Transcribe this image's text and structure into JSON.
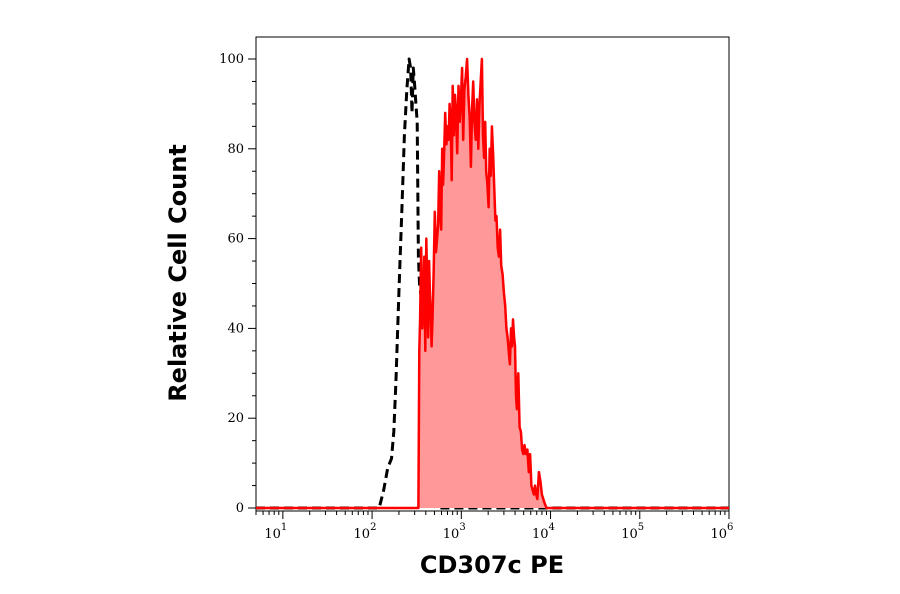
{
  "chart_data": {
    "type": "area",
    "title": "",
    "xlabel": "CD307c PE",
    "ylabel": "Relative Cell Count",
    "xscale": "log",
    "xlim": [
      5,
      1000000
    ],
    "ylim": [
      0,
      105
    ],
    "grid": false,
    "x_ticks": [
      {
        "base": "10",
        "exp": "1",
        "value": 10
      },
      {
        "base": "10",
        "exp": "2",
        "value": 100
      },
      {
        "base": "10",
        "exp": "3",
        "value": 1000
      },
      {
        "base": "10",
        "exp": "4",
        "value": 10000
      },
      {
        "base": "10",
        "exp": "5",
        "value": 100000
      },
      {
        "base": "10",
        "exp": "6",
        "value": 1000000
      }
    ],
    "y_ticks": [
      {
        "label": "0",
        "value": 0
      },
      {
        "label": "20",
        "value": 20
      },
      {
        "label": "40",
        "value": 40
      },
      {
        "label": "60",
        "value": 60
      },
      {
        "label": "80",
        "value": 80
      },
      {
        "label": "100",
        "value": 100
      }
    ],
    "series": [
      {
        "style": "dashed",
        "color": "#000000",
        "fill": "none",
        "x": [
          5,
          120,
          135,
          150,
          165,
          175,
          185,
          200,
          215,
          230,
          245,
          260,
          270,
          280,
          290,
          300,
          310,
          320,
          330,
          340,
          360,
          380,
          400,
          420,
          450,
          480,
          520,
          560,
          600,
          1000000
        ],
        "y": [
          0,
          0,
          4,
          9,
          11,
          17,
          28,
          48,
          66,
          83,
          93,
          100,
          98,
          88,
          98,
          94,
          90,
          86,
          56,
          50,
          46,
          23,
          18,
          5,
          2,
          1,
          0,
          0,
          0,
          0
        ]
      },
      {
        "style": "solid",
        "color": "#ff0000",
        "fill": "#ff9999",
        "x": [
          5,
          330,
          338,
          345,
          355,
          365,
          375,
          385,
          395,
          405,
          415,
          425,
          435,
          445,
          455,
          465,
          475,
          490,
          505,
          520,
          535,
          550,
          565,
          580,
          595,
          610,
          625,
          640,
          660,
          680,
          700,
          720,
          740,
          760,
          780,
          800,
          825,
          850,
          875,
          900,
          930,
          960,
          990,
          1020,
          1050,
          1080,
          1120,
          1160,
          1200,
          1240,
          1280,
          1320,
          1360,
          1400,
          1450,
          1500,
          1550,
          1600,
          1650,
          1700,
          1750,
          1800,
          1850,
          1900,
          1960,
          2020,
          2080,
          2140,
          2200,
          2270,
          2340,
          2410,
          2480,
          2560,
          2640,
          2720,
          2800,
          2900,
          3000,
          3100,
          3200,
          3300,
          3400,
          3500,
          3600,
          3700,
          3800,
          3900,
          4000,
          4100,
          4200,
          4350,
          4500,
          4650,
          4800,
          4950,
          5100,
          5300,
          5500,
          5700,
          5900,
          6100,
          6300,
          6500,
          6700,
          6900,
          7100,
          7400,
          7700,
          8000,
          8300,
          8600,
          9000,
          1000000
        ],
        "y": [
          0,
          0,
          35,
          42,
          58,
          40,
          45,
          56,
          35,
          60,
          50,
          38,
          55,
          48,
          43,
          36,
          42,
          53,
          66,
          57,
          60,
          63,
          75,
          66,
          62,
          80,
          72,
          78,
          88,
          81,
          85,
          82,
          90,
          86,
          73,
          94,
          83,
          92,
          88,
          79,
          94,
          86,
          91,
          98,
          82,
          93,
          96,
          100,
          92,
          87,
          76,
          89,
          95,
          86,
          82,
          91,
          80,
          90,
          95,
          100,
          83,
          78,
          86,
          75,
          72,
          67,
          80,
          74,
          85,
          79,
          71,
          64,
          65,
          58,
          56,
          62,
          54,
          52,
          48,
          45,
          40,
          38,
          35,
          32,
          40,
          36,
          42,
          38,
          36,
          25,
          22,
          30,
          18,
          17,
          13,
          12,
          14,
          12,
          13,
          8,
          12,
          5,
          4,
          3,
          5,
          3,
          2,
          8,
          6,
          3,
          2,
          1,
          0,
          0
        ]
      }
    ]
  }
}
